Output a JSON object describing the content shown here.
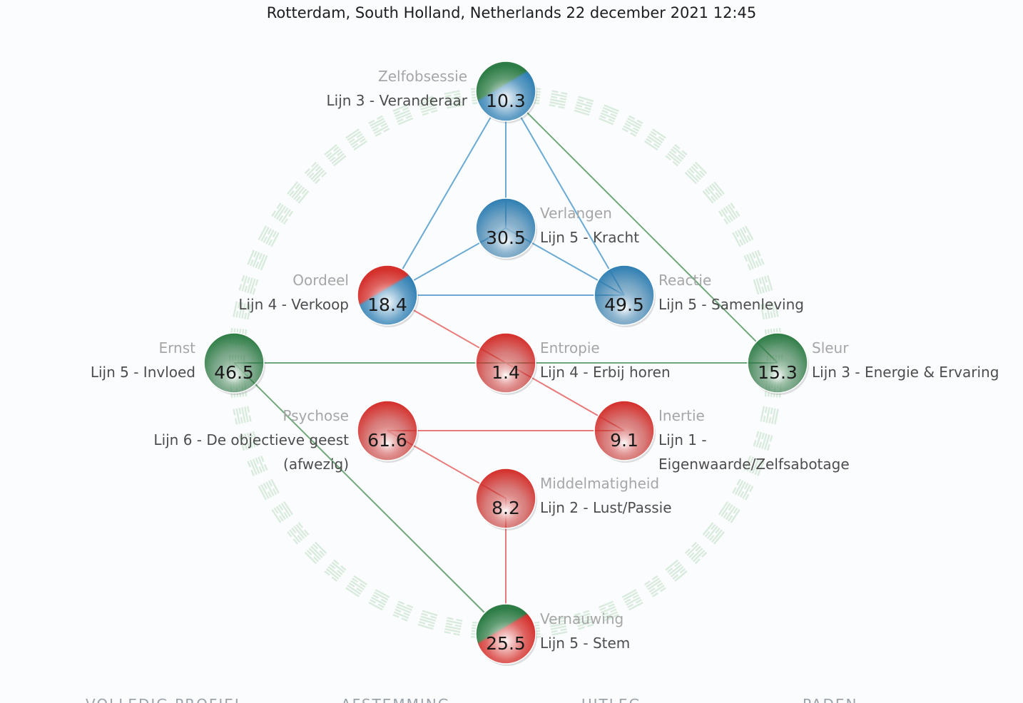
{
  "header": {
    "title": "Rotterdam, South Holland, Netherlands 22 december 2021 12:45"
  },
  "colors": {
    "blue": "#2f7fb3",
    "red": "#d4302c",
    "green": "#2e7d46",
    "ring": "#d9ebdd",
    "blue_link": "#6aaad2",
    "red_link": "#e77b7b",
    "green_link": "#6fa77c"
  },
  "nodes": [
    {
      "id": "zelfobsessie",
      "name": "Zelfobsessie",
      "line": "Lijn 3 - Veranderaar",
      "value": "10.3",
      "colors": [
        "green",
        "blue"
      ]
    },
    {
      "id": "verlangen",
      "name": "Verlangen",
      "line": "Lijn 5 - Kracht",
      "value": "30.5",
      "colors": [
        "blue"
      ]
    },
    {
      "id": "oordeel",
      "name": "Oordeel",
      "line": "Lijn 4 - Verkoop",
      "value": "18.4",
      "colors": [
        "red",
        "blue"
      ]
    },
    {
      "id": "reactie",
      "name": "Reactie",
      "line": "Lijn 5 - Samenleving",
      "value": "49.5",
      "colors": [
        "blue"
      ]
    },
    {
      "id": "ernst",
      "name": "Ernst",
      "line": "Lijn 5 - Invloed",
      "value": "46.5",
      "colors": [
        "green"
      ]
    },
    {
      "id": "entropie",
      "name": "Entropie",
      "line": "Lijn 4 - Erbij horen",
      "value": "1.4",
      "colors": [
        "red"
      ]
    },
    {
      "id": "sleur",
      "name": "Sleur",
      "line": "Lijn 3 - Energie & Ervaring",
      "value": "15.3",
      "colors": [
        "green"
      ]
    },
    {
      "id": "psychose",
      "name": "Psychose",
      "line": "Lijn 6 - De objectieve geest",
      "line2": "(afwezig)",
      "value": "61.6",
      "colors": [
        "red"
      ]
    },
    {
      "id": "inertie",
      "name": "Inertie",
      "line": "Lijn 1 -",
      "line2": "Eigenwaarde/Zelfsabotage",
      "value": "9.1",
      "colors": [
        "red"
      ]
    },
    {
      "id": "middelmatigheid",
      "name": "Middelmatigheid",
      "line": "Lijn 2 - Lust/Passie",
      "value": "8.2",
      "colors": [
        "red"
      ]
    },
    {
      "id": "vernauwing",
      "name": "Vernauwing",
      "line": "Lijn 5 - Stem",
      "value": "25.5",
      "colors": [
        "green",
        "red"
      ]
    }
  ],
  "links": [
    {
      "from": "zelfobsessie",
      "to": "verlangen",
      "color": "blue"
    },
    {
      "from": "zelfobsessie",
      "to": "oordeel",
      "color": "blue"
    },
    {
      "from": "zelfobsessie",
      "to": "reactie",
      "color": "blue"
    },
    {
      "from": "zelfobsessie",
      "to": "sleur",
      "color": "green"
    },
    {
      "from": "verlangen",
      "to": "oordeel",
      "color": "blue"
    },
    {
      "from": "verlangen",
      "to": "reactie",
      "color": "blue"
    },
    {
      "from": "oordeel",
      "to": "reactie",
      "color": "blue"
    },
    {
      "from": "oordeel",
      "to": "entropie",
      "color": "red"
    },
    {
      "from": "ernst",
      "to": "sleur",
      "color": "green"
    },
    {
      "from": "ernst",
      "to": "vernauwing",
      "color": "green"
    },
    {
      "from": "entropie",
      "to": "inertie",
      "color": "red"
    },
    {
      "from": "psychose",
      "to": "inertie",
      "color": "red"
    },
    {
      "from": "psychose",
      "to": "middelmatigheid",
      "color": "red"
    },
    {
      "from": "middelmatigheid",
      "to": "vernauwing",
      "color": "red"
    }
  ],
  "bottom_nav": [
    "Volledig profiel",
    "Afstemming",
    "Uitleg",
    "Paden"
  ]
}
